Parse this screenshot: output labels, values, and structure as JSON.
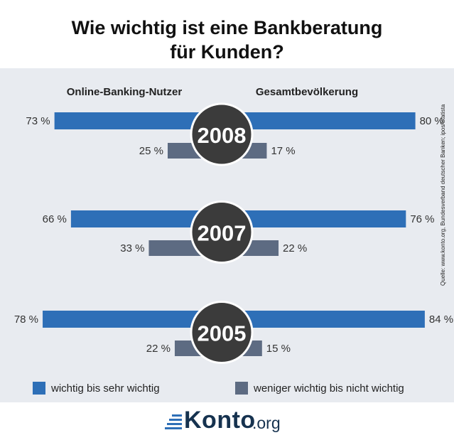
{
  "title": {
    "line1": "Wie wichtig ist eine Bankberatung",
    "line2": "für Kunden?"
  },
  "colors": {
    "wichtig": "#2e6fb7",
    "weniger": "#5d6b82",
    "circle": "#3b3b3b"
  },
  "chart_data": {
    "type": "bar",
    "title": "Wie wichtig ist eine Bankberatung für Kunden?",
    "left_group": "Online-Banking-Nutzer",
    "right_group": "Gesamtbevölkerung",
    "unit": "%",
    "years": [
      "2008",
      "2007",
      "2005"
    ],
    "series": [
      {
        "name": "wichtig bis sehr wichtig",
        "online": [
          73,
          66,
          78
        ],
        "gesamt": [
          80,
          76,
          84
        ]
      },
      {
        "name": "weniger wichtig bis nicht wichtig",
        "online": [
          25,
          33,
          22
        ],
        "gesamt": [
          17,
          22,
          15
        ]
      }
    ]
  },
  "source": "Quelle: www.konto.org, Bundesverband deutscher Banken; ipos/Statista",
  "logo": {
    "brand": "Konto",
    "suffix": ".org"
  }
}
